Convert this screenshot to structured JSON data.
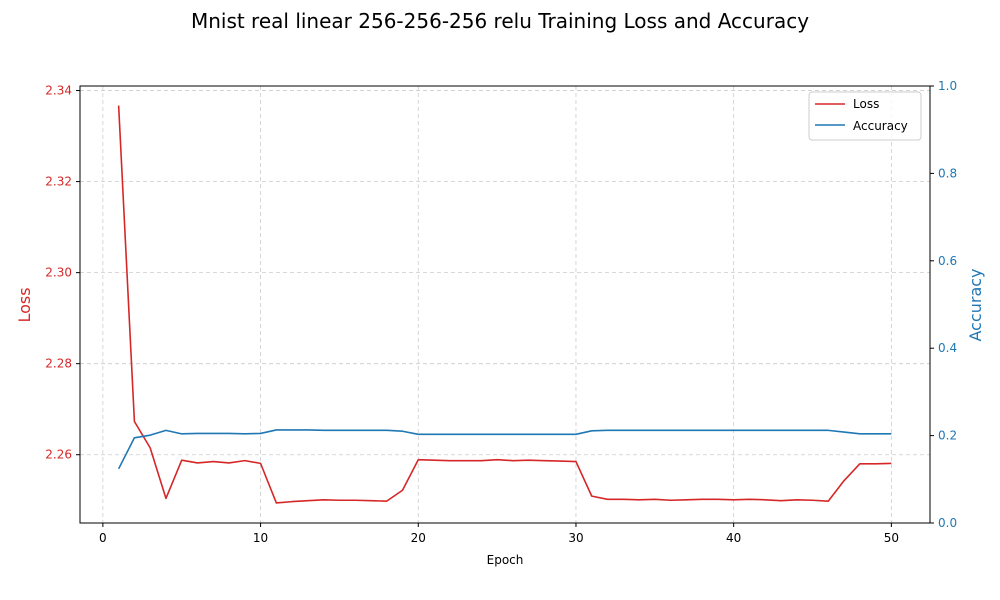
{
  "chart_data": {
    "type": "line",
    "title": "Mnist real linear 256-256-256 relu Training Loss and Accuracy",
    "xlabel": "Epoch",
    "ylabel_left": "Loss",
    "ylabel_right": "Accuracy",
    "xlim": [
      -1.45,
      52.45
    ],
    "ylim_left": [
      2.245,
      2.341
    ],
    "ylim_right": [
      0,
      1
    ],
    "x_ticks": [
      0,
      10,
      20,
      30,
      40,
      50
    ],
    "y_left_ticks": [
      2.26,
      2.28,
      2.3,
      2.32,
      2.34
    ],
    "y_right_ticks": [
      0.0,
      0.2,
      0.4,
      0.6,
      0.8,
      1.0
    ],
    "grid": true,
    "legend_position": "top-right",
    "colors": {
      "loss": "#d62728",
      "accuracy": "#1f77b4"
    },
    "x": [
      1,
      2,
      3,
      4,
      5,
      6,
      7,
      8,
      9,
      10,
      11,
      12,
      13,
      14,
      15,
      16,
      17,
      18,
      19,
      20,
      21,
      22,
      23,
      24,
      25,
      26,
      27,
      28,
      29,
      30,
      31,
      32,
      33,
      34,
      35,
      36,
      37,
      38,
      39,
      40,
      41,
      42,
      43,
      44,
      45,
      46,
      47,
      48,
      49,
      50
    ],
    "series": [
      {
        "name": "Loss",
        "axis": "left",
        "values": [
          2.3367,
          2.2673,
          2.2615,
          2.2504,
          2.2588,
          2.2582,
          2.2585,
          2.2582,
          2.2587,
          2.2581,
          2.2494,
          2.2497,
          2.2499,
          2.2501,
          2.25,
          2.25,
          2.2499,
          2.2498,
          2.2522,
          2.2589,
          2.2588,
          2.2587,
          2.2587,
          2.2587,
          2.2589,
          2.2587,
          2.2588,
          2.2587,
          2.2586,
          2.2585,
          2.2509,
          2.2502,
          2.2502,
          2.2501,
          2.2502,
          2.25,
          2.2501,
          2.2502,
          2.2502,
          2.2501,
          2.2502,
          2.2501,
          2.2499,
          2.2501,
          2.25,
          2.2498,
          2.2543,
          2.258,
          2.258,
          2.2581
        ]
      },
      {
        "name": "Accuracy",
        "axis": "right",
        "values": [
          0.124,
          0.195,
          0.201,
          0.212,
          0.204,
          0.205,
          0.205,
          0.205,
          0.204,
          0.205,
          0.213,
          0.213,
          0.213,
          0.212,
          0.212,
          0.212,
          0.212,
          0.212,
          0.21,
          0.203,
          0.203,
          0.203,
          0.203,
          0.203,
          0.203,
          0.203,
          0.203,
          0.203,
          0.203,
          0.203,
          0.211,
          0.212,
          0.212,
          0.212,
          0.212,
          0.212,
          0.212,
          0.212,
          0.212,
          0.212,
          0.212,
          0.212,
          0.212,
          0.212,
          0.212,
          0.212,
          0.208,
          0.204,
          0.204,
          0.204
        ]
      }
    ]
  }
}
